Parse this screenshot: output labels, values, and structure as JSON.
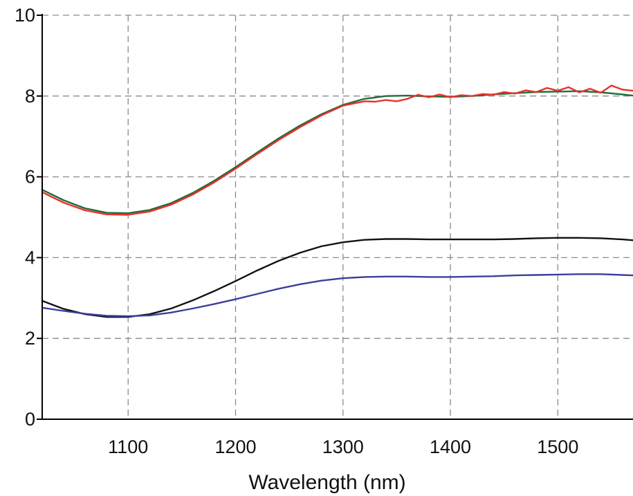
{
  "chart_data": {
    "type": "line",
    "xlabel": "Wavelength (nm)",
    "ylabel": "",
    "xlim": [
      1020,
      1570
    ],
    "ylim": [
      0,
      10
    ],
    "xticks": [
      1100,
      1200,
      1300,
      1400,
      1500
    ],
    "yticks": [
      0,
      2,
      4,
      6,
      8,
      10
    ],
    "grid": true,
    "series": [
      {
        "color": "#1f6b3a",
        "x": [
          1020,
          1040,
          1060,
          1080,
          1100,
          1120,
          1140,
          1160,
          1180,
          1200,
          1220,
          1240,
          1260,
          1280,
          1300,
          1320,
          1340,
          1360,
          1380,
          1400,
          1420,
          1440,
          1460,
          1480,
          1500,
          1520,
          1540,
          1560,
          1570
        ],
        "y": [
          5.68,
          5.42,
          5.22,
          5.11,
          5.1,
          5.18,
          5.35,
          5.6,
          5.9,
          6.24,
          6.6,
          6.95,
          7.27,
          7.55,
          7.78,
          7.93,
          8.0,
          8.01,
          7.99,
          7.98,
          8.0,
          8.04,
          8.07,
          8.1,
          8.11,
          8.12,
          8.09,
          8.04,
          8.01
        ]
      },
      {
        "color": "#e8312a",
        "x": [
          1020,
          1040,
          1060,
          1080,
          1100,
          1120,
          1140,
          1160,
          1180,
          1200,
          1220,
          1240,
          1260,
          1280,
          1300,
          1320,
          1330,
          1340,
          1350,
          1360,
          1370,
          1380,
          1390,
          1400,
          1410,
          1420,
          1430,
          1440,
          1450,
          1460,
          1470,
          1480,
          1490,
          1500,
          1510,
          1520,
          1530,
          1540,
          1550,
          1560,
          1570
        ],
        "y": [
          5.62,
          5.36,
          5.17,
          5.07,
          5.06,
          5.14,
          5.31,
          5.56,
          5.86,
          6.2,
          6.56,
          6.91,
          7.23,
          7.52,
          7.76,
          7.87,
          7.86,
          7.9,
          7.87,
          7.93,
          8.03,
          7.97,
          8.04,
          7.97,
          8.02,
          8.0,
          8.05,
          8.03,
          8.1,
          8.06,
          8.14,
          8.1,
          8.2,
          8.13,
          8.22,
          8.09,
          8.18,
          8.08,
          8.26,
          8.16,
          8.13
        ]
      },
      {
        "color": "#111111",
        "x": [
          1020,
          1040,
          1060,
          1080,
          1100,
          1120,
          1140,
          1160,
          1180,
          1200,
          1220,
          1240,
          1260,
          1280,
          1300,
          1320,
          1340,
          1360,
          1380,
          1400,
          1420,
          1440,
          1460,
          1480,
          1500,
          1520,
          1540,
          1560,
          1570
        ],
        "y": [
          2.93,
          2.73,
          2.6,
          2.53,
          2.53,
          2.6,
          2.74,
          2.94,
          3.17,
          3.42,
          3.68,
          3.92,
          4.12,
          4.28,
          4.38,
          4.44,
          4.46,
          4.46,
          4.45,
          4.45,
          4.45,
          4.45,
          4.46,
          4.48,
          4.49,
          4.49,
          4.48,
          4.45,
          4.43
        ]
      },
      {
        "color": "#3a3f9a",
        "x": [
          1020,
          1040,
          1060,
          1080,
          1100,
          1120,
          1140,
          1160,
          1180,
          1200,
          1220,
          1240,
          1260,
          1280,
          1300,
          1320,
          1340,
          1360,
          1380,
          1400,
          1420,
          1440,
          1460,
          1480,
          1500,
          1520,
          1540,
          1560,
          1570
        ],
        "y": [
          2.76,
          2.68,
          2.61,
          2.56,
          2.55,
          2.57,
          2.64,
          2.74,
          2.85,
          2.97,
          3.1,
          3.23,
          3.34,
          3.43,
          3.49,
          3.52,
          3.53,
          3.53,
          3.52,
          3.52,
          3.53,
          3.54,
          3.56,
          3.57,
          3.58,
          3.59,
          3.59,
          3.57,
          3.56
        ]
      }
    ]
  }
}
